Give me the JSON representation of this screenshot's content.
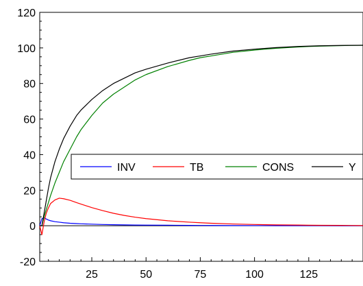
{
  "chart_data": {
    "type": "line",
    "title": "",
    "xlabel": "",
    "ylabel": "",
    "xlim": [
      1,
      150
    ],
    "ylim": [
      -20,
      120
    ],
    "x_ticks": [
      25,
      50,
      75,
      100,
      125
    ],
    "x_tick_labels": [
      "25",
      "50",
      "75",
      "100",
      "125"
    ],
    "y_ticks": [
      -20,
      0,
      20,
      40,
      60,
      80,
      100,
      120
    ],
    "y_tick_labels": [
      "-20",
      "0",
      "20",
      "40",
      "60",
      "80",
      "100",
      "120"
    ],
    "zero_line": true,
    "grid": false,
    "legend_position": "center-right",
    "x": [
      1,
      2,
      3,
      4,
      5,
      6,
      8,
      10,
      12,
      15,
      18,
      20,
      25,
      30,
      35,
      40,
      45,
      50,
      60,
      70,
      75,
      80,
      90,
      100,
      110,
      120,
      125,
      130,
      140,
      150
    ],
    "series": [
      {
        "name": "INV",
        "color": "#0000ff",
        "values": [
          0,
          4.0,
          4.5,
          3.8,
          3.2,
          2.8,
          2.3,
          2.0,
          1.7,
          1.4,
          1.2,
          1.1,
          0.9,
          0.7,
          0.6,
          0.5,
          0.4,
          0.35,
          0.3,
          0.2,
          0.18,
          0.15,
          0.1,
          0.08,
          0.06,
          0.05,
          0.04,
          0.03,
          0.02,
          0.02
        ]
      },
      {
        "name": "TB",
        "color": "#ff0000",
        "values": [
          0,
          -5,
          2,
          7,
          10,
          12.5,
          14.5,
          15.5,
          15.2,
          14.3,
          13.0,
          12.2,
          10.2,
          8.5,
          7.0,
          5.8,
          4.8,
          4.0,
          2.8,
          2.0,
          1.7,
          1.4,
          1.0,
          0.7,
          0.5,
          0.4,
          0.3,
          0.25,
          0.2,
          0.1
        ]
      },
      {
        "name": "CONS",
        "color": "#008000",
        "values": [
          0,
          0,
          5,
          9,
          13,
          17,
          24,
          30,
          36,
          43,
          50,
          54,
          62,
          69,
          74,
          78,
          82,
          85,
          89.5,
          93,
          94.5,
          95.5,
          97.5,
          98.8,
          99.8,
          100.5,
          100.8,
          101.0,
          101.3,
          101.5
        ]
      },
      {
        "name": "Y",
        "color": "#000000",
        "values": [
          0,
          0,
          7,
          14,
          21,
          27,
          36,
          43,
          49,
          56,
          62,
          65,
          71,
          76,
          80,
          83,
          86,
          88,
          91.5,
          94.5,
          95.5,
          96.5,
          98.2,
          99.3,
          100.2,
          100.8,
          101.0,
          101.2,
          101.4,
          101.5
        ]
      }
    ]
  }
}
